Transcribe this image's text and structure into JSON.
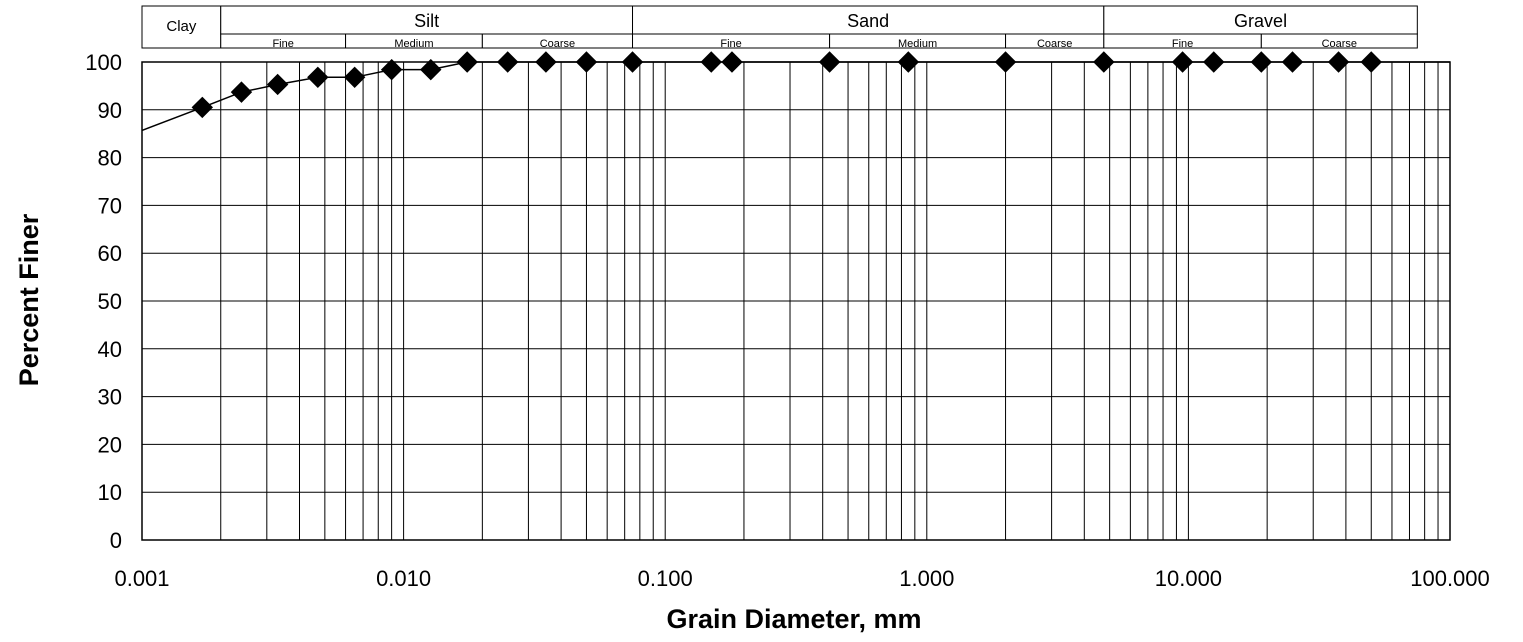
{
  "chart_data": {
    "type": "scatter",
    "title": "",
    "xlabel": "Grain Diameter, mm",
    "ylabel": "Percent Finer",
    "x_scale": "log",
    "xlim": [
      0.001,
      100
    ],
    "ylim": [
      0,
      100
    ],
    "grid": true,
    "x_tick_labels": [
      "0.001",
      "0.010",
      "0.100",
      "1.000",
      "10.000",
      "100.000"
    ],
    "y_tick_labels": [
      "0",
      "10",
      "20",
      "30",
      "40",
      "50",
      "60",
      "70",
      "80",
      "90",
      "100"
    ],
    "series": [
      {
        "marker": "diamond",
        "color": "#000000",
        "points": [
          {
            "x": 0.0017,
            "y": 90.5
          },
          {
            "x": 0.0024,
            "y": 93.7
          },
          {
            "x": 0.0033,
            "y": 95.3
          },
          {
            "x": 0.0047,
            "y": 96.8
          },
          {
            "x": 0.0065,
            "y": 96.8
          },
          {
            "x": 0.009,
            "y": 98.4
          },
          {
            "x": 0.0127,
            "y": 98.4
          },
          {
            "x": 0.0175,
            "y": 100
          },
          {
            "x": 0.025,
            "y": 100
          },
          {
            "x": 0.035,
            "y": 100
          },
          {
            "x": 0.05,
            "y": 100
          },
          {
            "x": 0.075,
            "y": 100
          },
          {
            "x": 0.15,
            "y": 100
          },
          {
            "x": 0.18,
            "y": 100
          },
          {
            "x": 0.425,
            "y": 100
          },
          {
            "x": 0.85,
            "y": 100
          },
          {
            "x": 2.0,
            "y": 100
          },
          {
            "x": 4.75,
            "y": 100
          },
          {
            "x": 9.5,
            "y": 100
          },
          {
            "x": 12.5,
            "y": 100
          },
          {
            "x": 19.0,
            "y": 100
          },
          {
            "x": 25.0,
            "y": 100
          },
          {
            "x": 37.5,
            "y": 100
          },
          {
            "x": 50.0,
            "y": 100
          }
        ]
      }
    ],
    "trend_line": [
      {
        "x": 0.001,
        "y": 85.7
      },
      {
        "x": 0.0017,
        "y": 90.5
      },
      {
        "x": 0.0024,
        "y": 93.7
      },
      {
        "x": 0.0033,
        "y": 95.3
      },
      {
        "x": 0.0047,
        "y": 96.8
      },
      {
        "x": 0.0065,
        "y": 96.8
      },
      {
        "x": 0.009,
        "y": 98.4
      },
      {
        "x": 0.0127,
        "y": 98.4
      },
      {
        "x": 0.0175,
        "y": 100
      },
      {
        "x": 100,
        "y": 100
      }
    ],
    "classification": {
      "main": [
        {
          "label": "Clay",
          "from": 0.001,
          "to": 0.002
        },
        {
          "label": "Silt",
          "from": 0.002,
          "to": 0.075
        },
        {
          "label": "Sand",
          "from": 0.075,
          "to": 4.75
        },
        {
          "label": "Gravel",
          "from": 4.75,
          "to": 75
        }
      ],
      "sub": [
        {
          "label": "Fine",
          "from": 0.002,
          "to": 0.006
        },
        {
          "label": "Medium",
          "from": 0.006,
          "to": 0.02
        },
        {
          "label": "Coarse",
          "from": 0.02,
          "to": 0.075
        },
        {
          "label": "Fine",
          "from": 0.075,
          "to": 0.425
        },
        {
          "label": "Medium",
          "from": 0.425,
          "to": 2.0
        },
        {
          "label": "Coarse",
          "from": 2.0,
          "to": 4.75
        },
        {
          "label": "Fine",
          "from": 4.75,
          "to": 19.0
        },
        {
          "label": "Coarse",
          "from": 19.0,
          "to": 75
        }
      ]
    }
  }
}
